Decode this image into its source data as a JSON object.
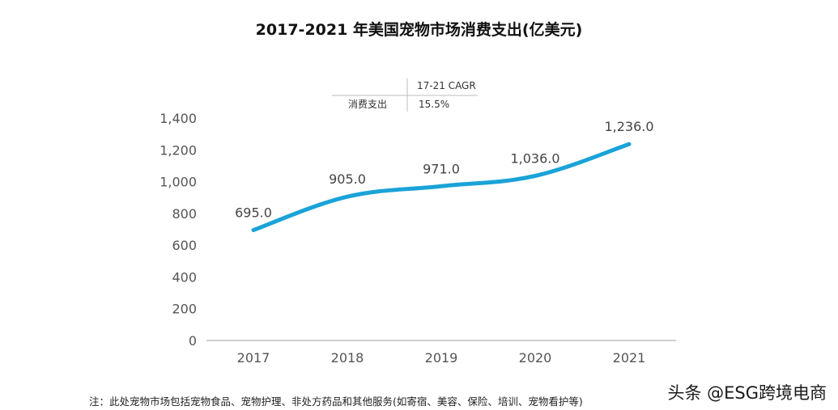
{
  "title": "2017-2021 年美国宠物市场消费支出(亿美元)",
  "cagr_table": {
    "header": "17-21 CAGR",
    "row_label": "消费支出",
    "row_value": "15.5%"
  },
  "note": "注：此处宠物市场包括宠物食品、宠物护理、非处方药品和其他服务(如寄宿、美容、保险、培训、宠物看护等)",
  "watermark": "头条 @ESG跨境电商",
  "colors": {
    "line": "#1aa3d8",
    "axis": "#bfbfbf",
    "text": "#555555"
  },
  "chart_data": {
    "type": "line",
    "categories": [
      "2017",
      "2018",
      "2019",
      "2020",
      "2021"
    ],
    "series": [
      {
        "values": [
          695.0,
          905.0,
          971.0,
          1036.0,
          1236.0
        ]
      }
    ],
    "data_labels": [
      "695.0",
      "905.0",
      "971.0",
      "1,036.0",
      "1,236.0"
    ],
    "yticks": [
      "0",
      "200",
      "400",
      "600",
      "800",
      "1,000",
      "1,200",
      "1,400"
    ],
    "ytick_values": [
      0,
      200,
      400,
      600,
      800,
      1000,
      1200,
      1400
    ],
    "ylim": [
      0,
      1400
    ],
    "grid": false,
    "smooth": true
  }
}
